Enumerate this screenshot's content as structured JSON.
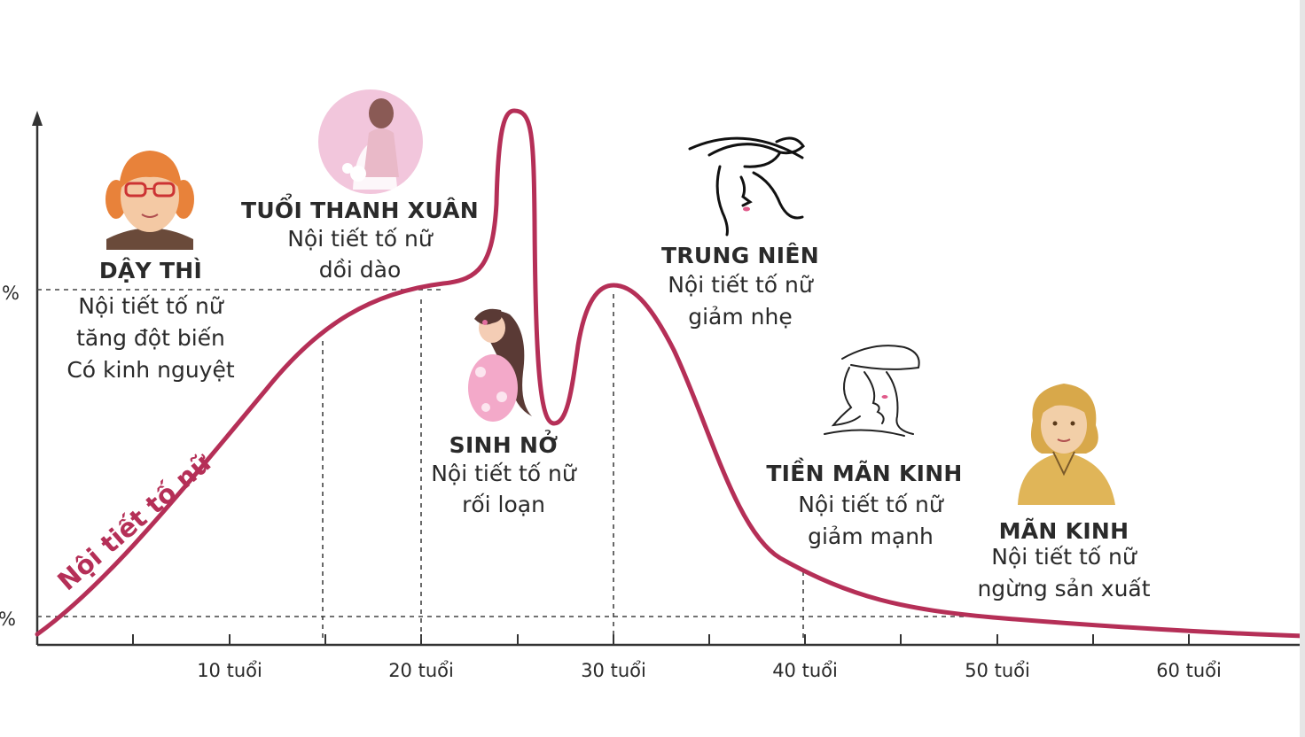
{
  "curve_label": "Nội tiết tố nữ",
  "y_axis": {
    "top_label": "%",
    "bottom_label": "%"
  },
  "x_axis": {
    "ticks": [
      "10 tuổi",
      "20 tuổi",
      "30 tuổi",
      "40 tuổi",
      "50 tuổi",
      "60 tuổi"
    ]
  },
  "stages": [
    {
      "title": "DẬY THÌ",
      "lines": [
        "Nội tiết tố nữ",
        "tăng đột biến",
        "Có kinh nguyệt"
      ],
      "icon": "girl-glasses-icon"
    },
    {
      "title": "TUỔI THANH XUÂN",
      "lines": [
        "Nội tiết tố nữ",
        "dồi dào"
      ],
      "icon": "bride-icon"
    },
    {
      "title": "SINH NỞ",
      "lines": [
        "Nội tiết tố nữ",
        "rối loạn"
      ],
      "icon": "pregnant-woman-icon"
    },
    {
      "title": "TRUNG NIÊN",
      "lines": [
        "Nội tiết tố nữ",
        "giảm nhẹ"
      ],
      "icon": "woman-hat-icon"
    },
    {
      "title": "TIỀN MÃN KINH",
      "lines": [
        "Nội tiết tố nữ",
        "giảm mạnh"
      ],
      "icon": "woman-hat-sketch-icon"
    },
    {
      "title": "MÃN KINH",
      "lines": [
        "Nội tiết tố nữ",
        "ngừng sản xuất"
      ],
      "icon": "older-woman-icon"
    }
  ],
  "colors": {
    "curve": "#b52f57",
    "axis": "#333333",
    "dash": "#444444"
  }
}
